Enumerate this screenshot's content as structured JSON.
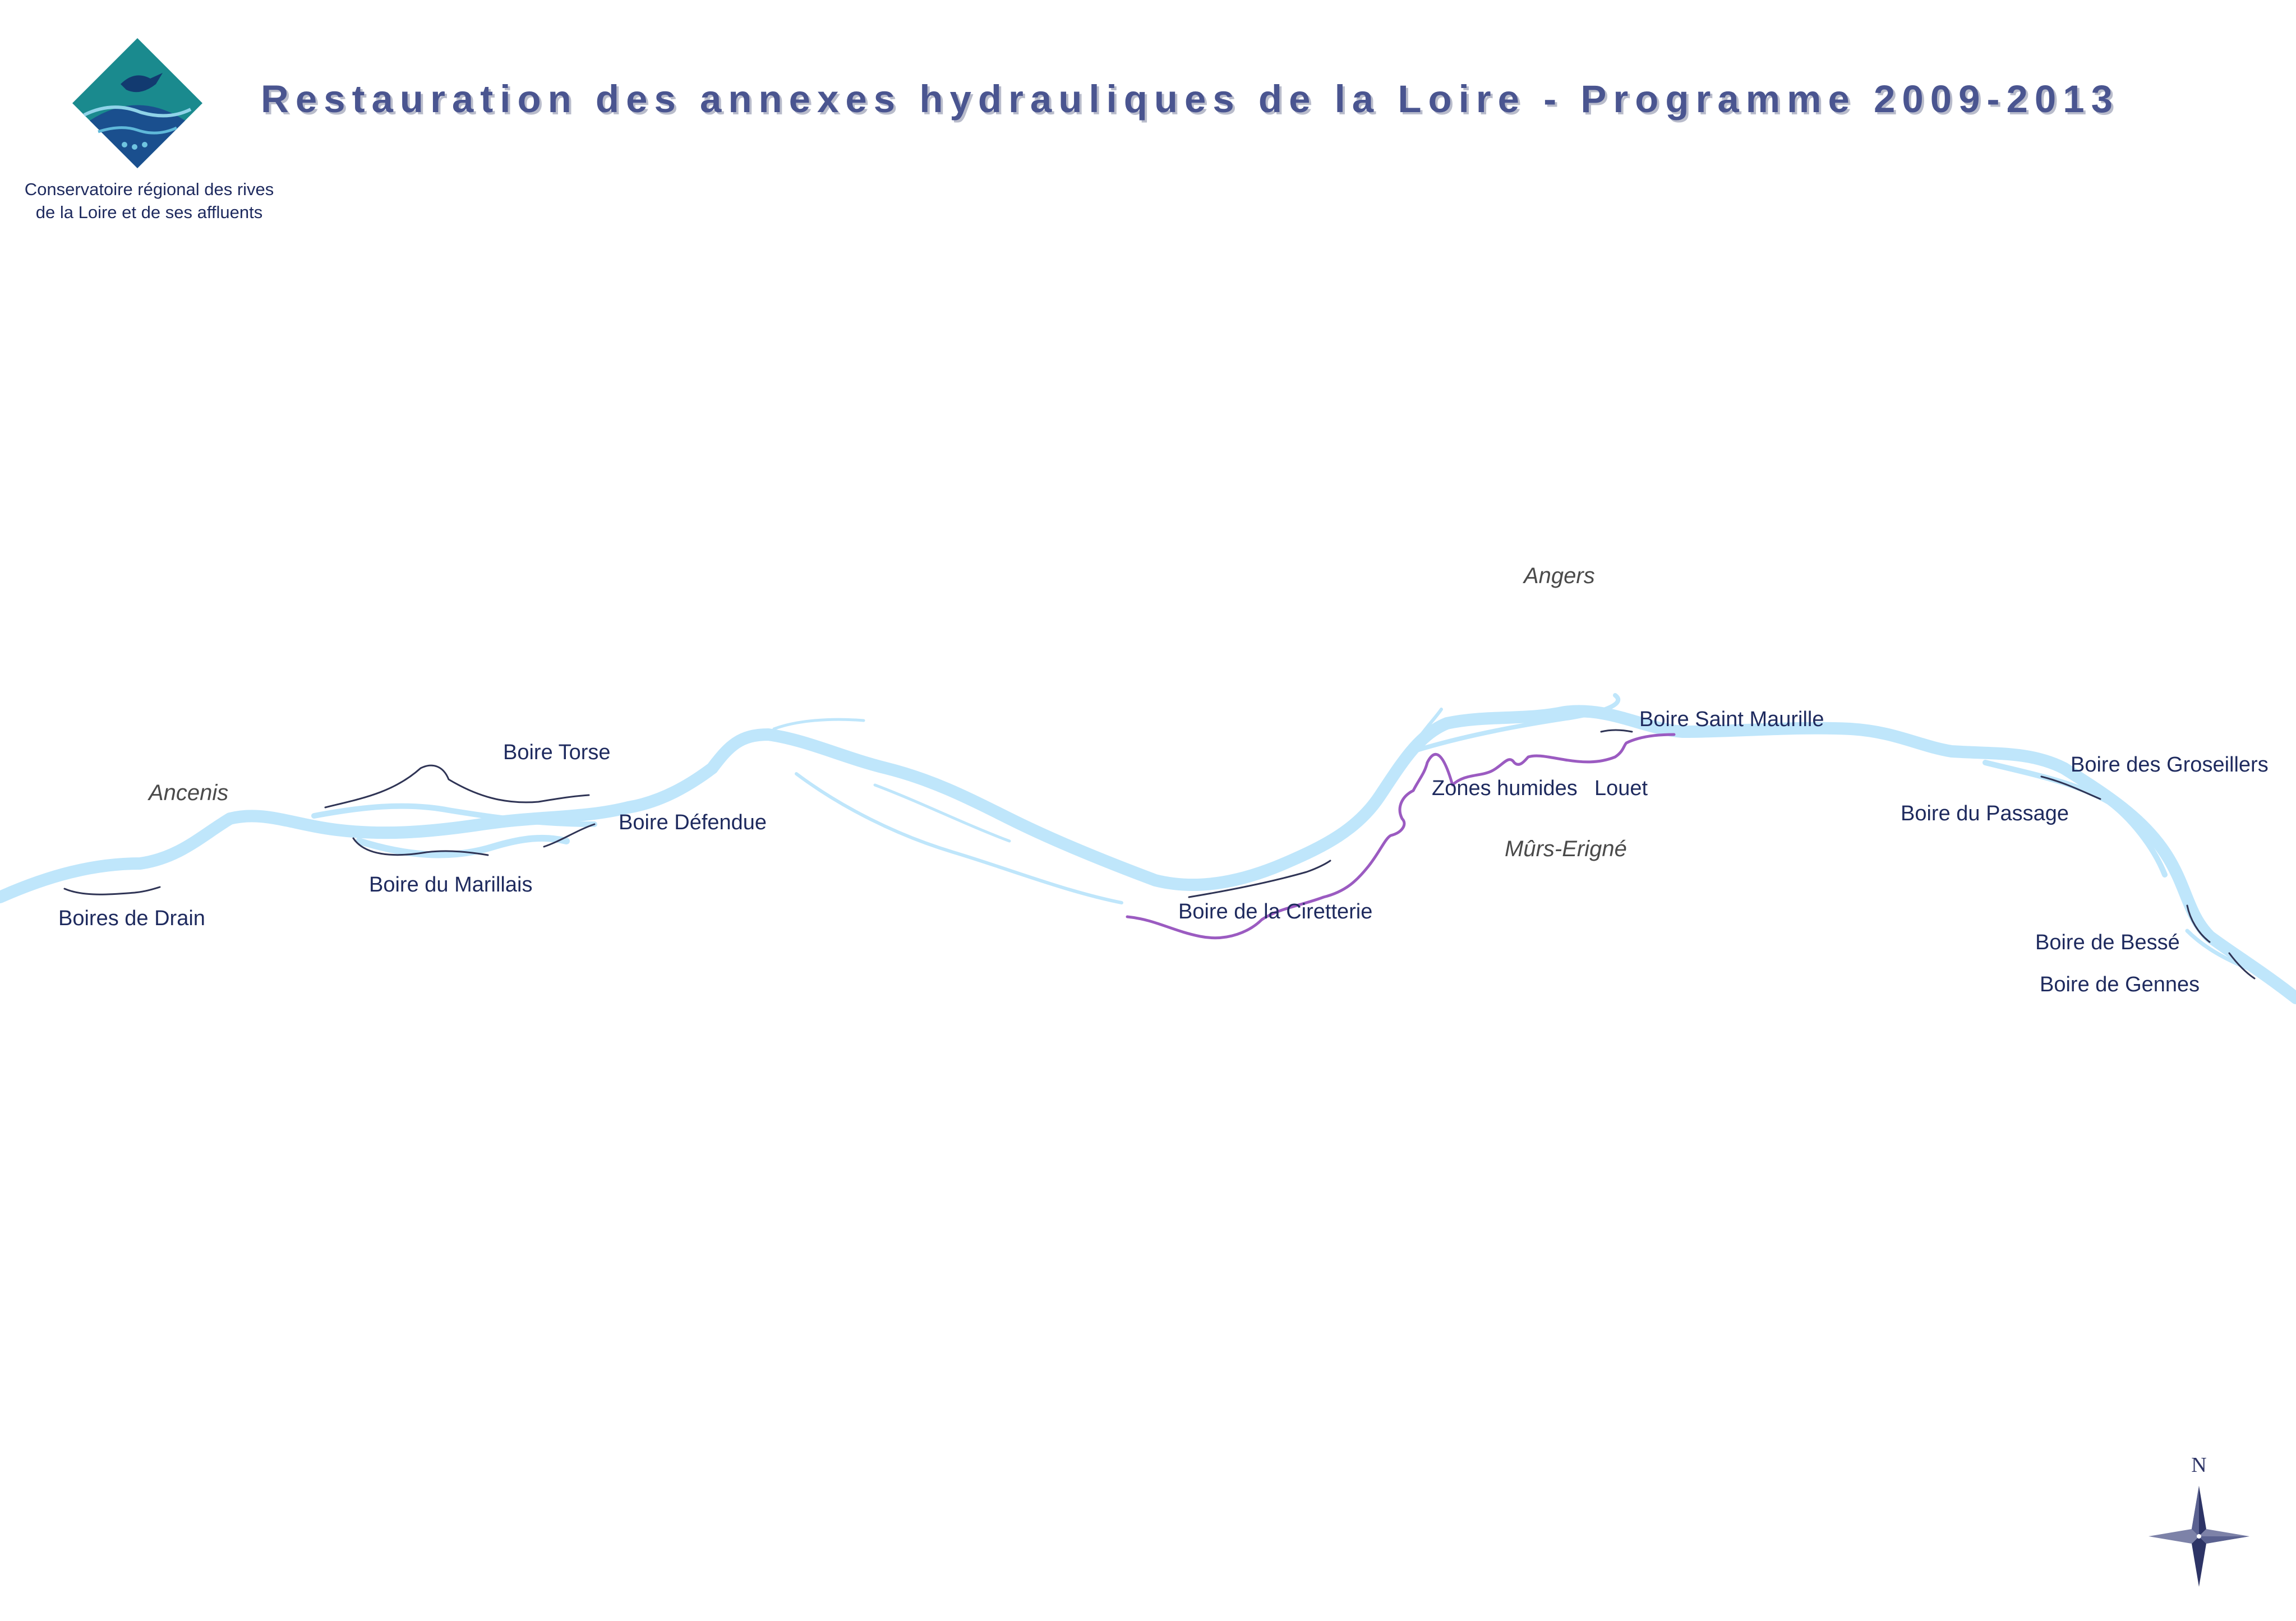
{
  "header": {
    "title": "Restauration des annexes hydrauliques de la Loire - Programme 2009-2013"
  },
  "organization": {
    "name_line1": "Conservatoire régional des rives",
    "name_line2": "de la Loire et de ses affluents",
    "logo_icon": "conservatoire-fish-logo-icon"
  },
  "towns": {
    "ancenis": "Ancenis",
    "angers": "Angers",
    "murs_erigne": "Mûrs-Erigné"
  },
  "sites": {
    "boires_de_drain": "Boires de Drain",
    "boire_du_marillais": "Boire du Marillais",
    "boire_torse": "Boire Torse",
    "boire_defendue": "Boire Défendue",
    "boire_de_la_ciretterie": "Boire de la Ciretterie",
    "zones_humides": "Zones humides",
    "louet": "Louet",
    "boire_saint_maurille": "Boire Saint Maurille",
    "boire_des_groseillers": "Boire des Groseillers",
    "boire_du_passage": "Boire du Passage",
    "boire_de_besse": "Boire de Bessé",
    "boire_de_gennes": "Boire de Gennes"
  },
  "compass": {
    "label": "N",
    "icon": "compass-rose-icon"
  },
  "colors": {
    "river": "#bfe6fb",
    "annex_line": "#2f3455",
    "louet_line": "#9b5bc1",
    "title": "#4a5590",
    "labels": "#1e2a5e"
  }
}
